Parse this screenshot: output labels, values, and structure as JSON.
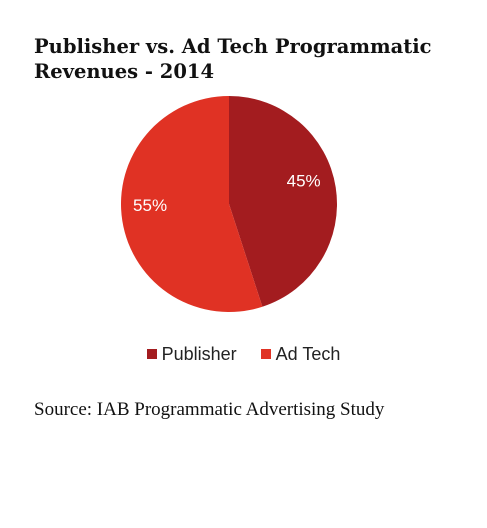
{
  "chart_data": {
    "type": "pie",
    "title": "Publisher vs. Ad Tech Programmatic Revenues - 2014",
    "series": [
      {
        "name": "Publisher",
        "value": 45,
        "label": "45%",
        "color": "#a31c1f"
      },
      {
        "name": "Ad Tech",
        "value": 55,
        "label": "55%",
        "color": "#e03224"
      }
    ],
    "legend_placement": "bottom"
  },
  "source": "Source: IAB Programmatic Advertising Study"
}
